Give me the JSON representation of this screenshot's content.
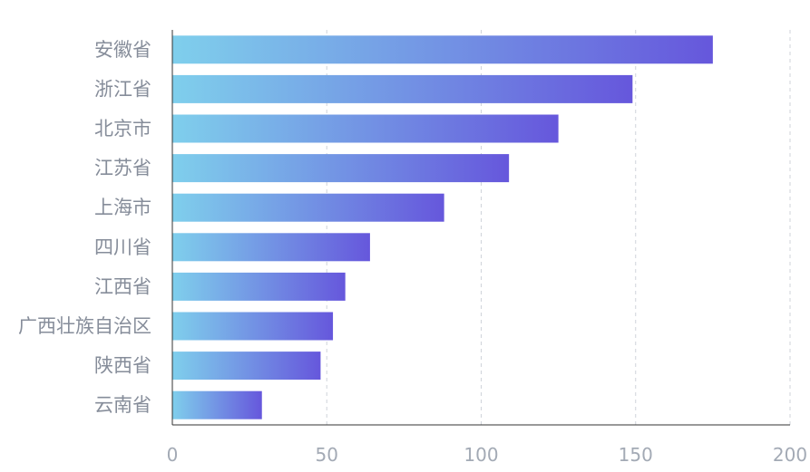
{
  "chart_data": {
    "type": "bar",
    "orientation": "horizontal",
    "categories": [
      "安徽省",
      "浙江省",
      "北京市",
      "江苏省",
      "上海市",
      "四川省",
      "江西省",
      "广西壮族自治区",
      "陕西省",
      "云南省"
    ],
    "values": [
      175,
      149,
      125,
      109,
      88,
      64,
      56,
      52,
      48,
      29
    ],
    "xlim": [
      0,
      200
    ],
    "x_ticks": [
      "0",
      "50",
      "100",
      "150",
      "200"
    ],
    "grid": "vertical dashed",
    "legend": "none",
    "title": "",
    "xlabel": "",
    "ylabel": "",
    "colors": {
      "bar_gradient_start": "#7fcfec",
      "bar_gradient_end": "#6657dc",
      "axis": "#333333",
      "grid": "#cfd3da",
      "category_text": "#868d9a",
      "tick_text": "#a3aab5"
    }
  }
}
